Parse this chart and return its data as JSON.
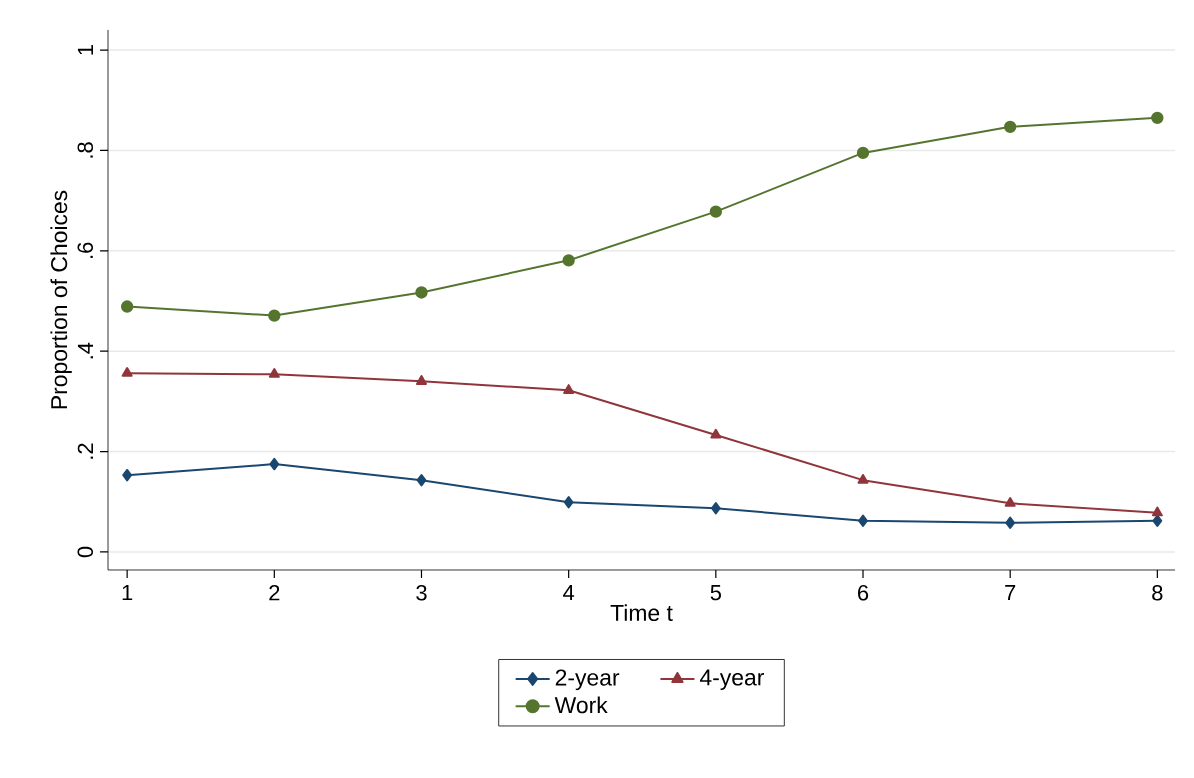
{
  "chart_data": {
    "type": "line",
    "xlabel": "Time t",
    "ylabel": "Proportion of Choices",
    "x": [
      1,
      2,
      3,
      4,
      5,
      6,
      7,
      8
    ],
    "series": [
      {
        "name": "2-year",
        "color": "#1a476f",
        "marker": "diamond",
        "values": [
          0.153,
          0.175,
          0.143,
          0.099,
          0.087,
          0.062,
          0.058,
          0.062
        ]
      },
      {
        "name": "4-year",
        "color": "#90353b",
        "marker": "triangle",
        "values": [
          0.356,
          0.354,
          0.34,
          0.322,
          0.233,
          0.143,
          0.097,
          0.078
        ]
      },
      {
        "name": "Work",
        "color": "#55752f",
        "marker": "circle",
        "values": [
          0.489,
          0.471,
          0.517,
          0.581,
          0.678,
          0.795,
          0.847,
          0.865
        ]
      }
    ],
    "xlim": [
      0.87,
      8.12
    ],
    "ylim": [
      -0.036,
      1.04
    ],
    "xticks": [
      1,
      2,
      3,
      4,
      5,
      6,
      7,
      8
    ],
    "yticks": [
      0,
      {
        "value": 0.2,
        "label": ".2"
      },
      {
        "value": 0.4,
        "label": ".4"
      },
      {
        "value": 0.6,
        "label": ".6"
      },
      {
        "value": 0.8,
        "label": ".8"
      },
      1
    ],
    "grid": "y",
    "legend": "bottom",
    "line_style": "solid"
  }
}
